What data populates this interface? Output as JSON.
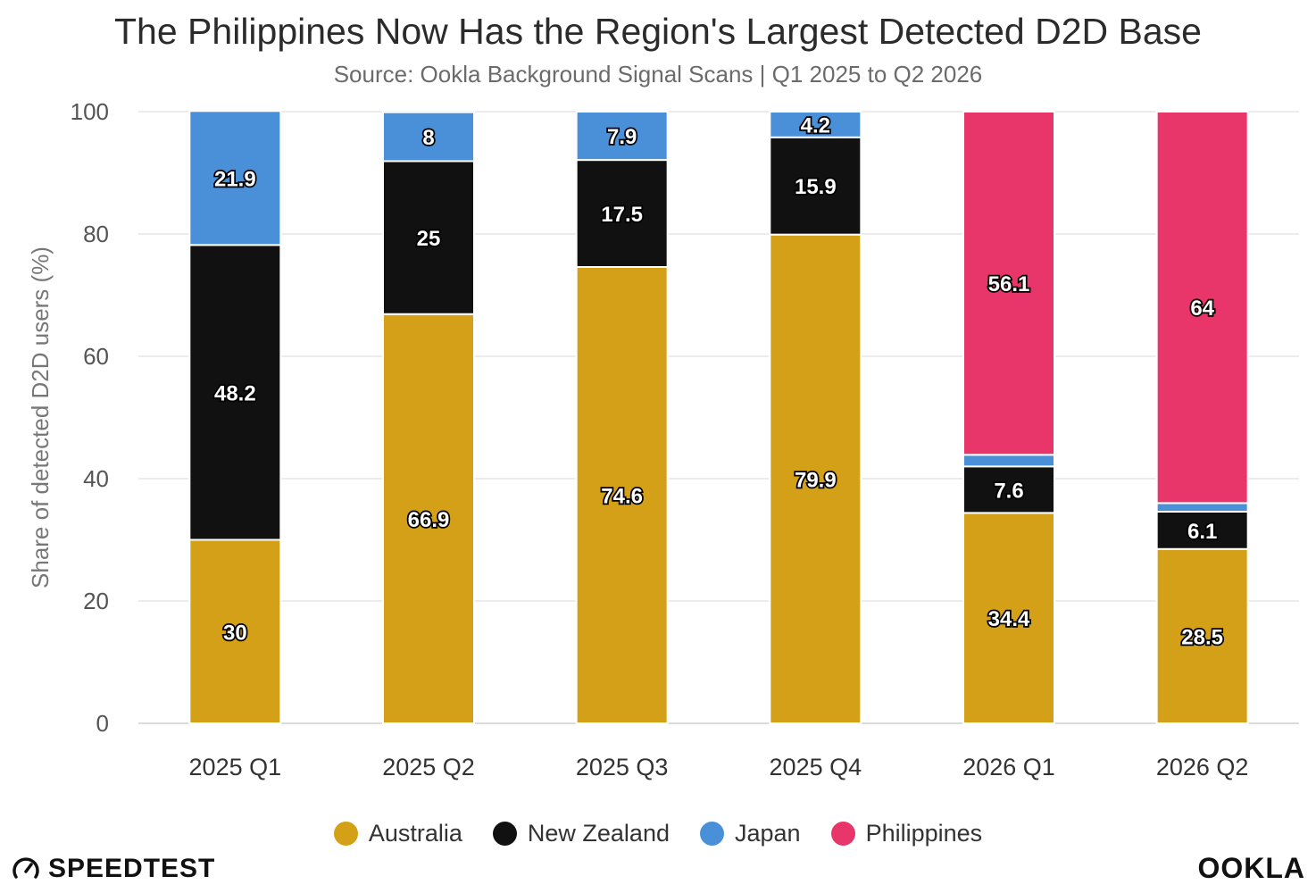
{
  "chart_data": {
    "type": "bar",
    "stacked": true,
    "title": "The Philippines Now Has the Region's Largest Detected D2D Base",
    "subtitle": "Source: Ookla Background Signal Scans | Q1 2025 to Q2 2026",
    "xlabel": "",
    "ylabel": "Share of detected D2D users (%)",
    "ylim": [
      0,
      100
    ],
    "yticks": [
      0,
      20,
      40,
      60,
      80,
      100
    ],
    "grid": true,
    "legend_position": "bottom",
    "categories": [
      "2025 Q1",
      "2025 Q2",
      "2025 Q3",
      "2025 Q4",
      "2026 Q1",
      "2026 Q2"
    ],
    "series": [
      {
        "name": "Australia",
        "color": "#D4A017",
        "values": [
          30,
          66.9,
          74.6,
          79.9,
          34.4,
          28.5
        ],
        "labels": [
          "30",
          "66.9",
          "74.6",
          "79.9",
          "34.4",
          "28.5"
        ]
      },
      {
        "name": "New Zealand",
        "color": "#111111",
        "values": [
          48.2,
          25,
          17.5,
          15.9,
          7.6,
          6.1
        ],
        "labels": [
          "48.2",
          "25",
          "17.5",
          "15.9",
          "7.6",
          "6.1"
        ]
      },
      {
        "name": "Japan",
        "color": "#4A90D9",
        "values": [
          21.9,
          8,
          7.9,
          4.2,
          1.9,
          1.4
        ],
        "labels": [
          "21.9",
          "8",
          "7.9",
          "4.2",
          "",
          ""
        ]
      },
      {
        "name": "Philippines",
        "color": "#E8366B",
        "values": [
          0,
          0,
          0,
          0,
          56.1,
          64
        ],
        "labels": [
          "",
          "",
          "",
          "",
          "56.1",
          "64"
        ]
      }
    ]
  },
  "branding": {
    "left": "SPEEDTEST",
    "right": "OOKLA",
    "left_icon": "speedometer-icon"
  }
}
